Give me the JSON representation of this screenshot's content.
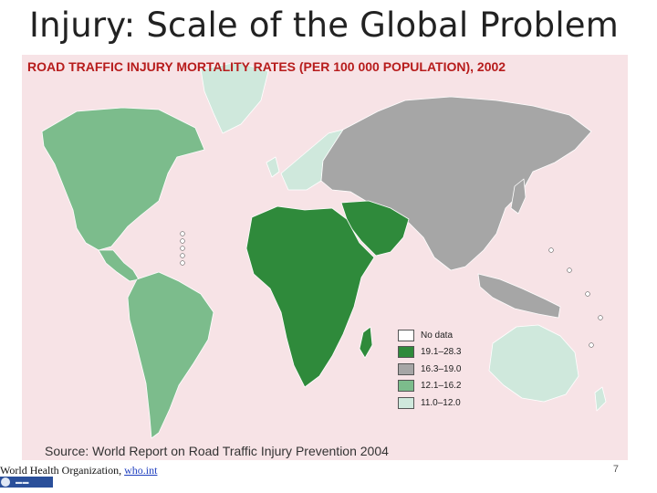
{
  "slide": {
    "title": "Injury: Scale of the Global Problem",
    "page_number": "7"
  },
  "map": {
    "heading": "ROAD TRAFFIC INJURY MORTALITY RATES (PER 100 000 POPULATION), 2002",
    "background_color": "#f7e3e6",
    "legend": [
      {
        "label": "No data",
        "color": "#ffffff"
      },
      {
        "label": "19.1–28.3",
        "color": "#2f8a3b"
      },
      {
        "label": "16.3–19.0",
        "color": "#a6a6a6"
      },
      {
        "label": "12.1–16.2",
        "color": "#7cbc8c"
      },
      {
        "label": "11.0–12.0",
        "color": "#cfe8dc"
      }
    ],
    "regions": [
      {
        "name": "North America",
        "category": "12.1–16.2"
      },
      {
        "name": "Greenland",
        "category": "11.0–12.0"
      },
      {
        "name": "Latin America",
        "category": "12.1–16.2"
      },
      {
        "name": "Africa",
        "category": "19.1–28.3"
      },
      {
        "name": "Middle East",
        "category": "19.1–28.3"
      },
      {
        "name": "Western Europe",
        "category": "11.0–12.0"
      },
      {
        "name": "Eastern Europe and Asia",
        "category": "16.3–19.0"
      },
      {
        "name": "Southeast Asia",
        "category": "16.3–19.0"
      },
      {
        "name": "Australia",
        "category": "11.0–12.0"
      }
    ]
  },
  "source": "Source: World Report on Road Traffic Injury Prevention 2004",
  "footer": {
    "org": "World Health Organization, ",
    "link": "who.int"
  }
}
